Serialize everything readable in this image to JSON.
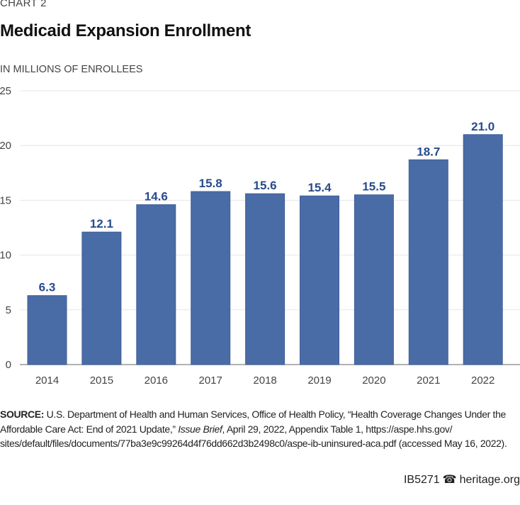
{
  "kicker": "CHART 2",
  "title": "Medicaid Expansion Enrollment",
  "unit_label": "IN MILLIONS OF ENROLLEES",
  "colors": {
    "bar": "#4a6ca6",
    "label": "#274b8c",
    "grid": "#e6e6e6",
    "axis": "#999999"
  },
  "chart_data": {
    "type": "bar",
    "title": "Medicaid Expansion Enrollment",
    "xlabel": "",
    "ylabel": "In millions of enrollees",
    "categories": [
      "2014",
      "2015",
      "2016",
      "2017",
      "2018",
      "2019",
      "2020",
      "2021",
      "2022"
    ],
    "values": [
      6.3,
      12.1,
      14.6,
      15.8,
      15.6,
      15.4,
      15.5,
      18.7,
      21.0
    ],
    "value_labels": [
      "6.3",
      "12.1",
      "14.6",
      "15.8",
      "15.6",
      "15.4",
      "15.5",
      "18.7",
      "21.0"
    ],
    "ylim": [
      0,
      25
    ],
    "yticks": [
      0,
      5,
      10,
      15,
      20,
      25
    ],
    "grid": true,
    "legend": "none"
  },
  "source": {
    "label": "SOURCE:",
    "text_before": " U.S. Department of Health and Human Services, Office of Health Policy, “Health Coverage Changes Under the Affordable Care Act: End of 2021 Update,” ",
    "italic": "Issue Brief",
    "text_after": ", April 29, 2022, Appendix Table 1, https://aspe.hhs.gov/ sites/default/files/documents/77ba3e9c99264d4f76dd662d3b2498c0/aspe-ib-uninsured-aca.pdf (accessed May 16, 2022)."
  },
  "footer": {
    "code": "IB5271",
    "site": "heritage.org",
    "icon": "bell-icon"
  }
}
